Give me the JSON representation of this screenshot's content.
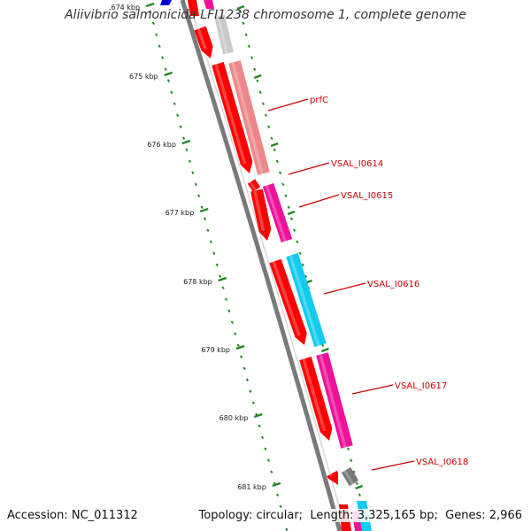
{
  "title": "Aliivibrio salmonicida LFI1238 chromosome 1, complete genome",
  "footer": {
    "accession_label": "Accession:",
    "accession": "NC_011312",
    "topology_label": "Topology:",
    "topology": "circular",
    "length_label": "Length:",
    "length": "3,325,165 bp",
    "genes_label": "Genes:",
    "genes": "2,966"
  },
  "colors": {
    "backbone": "#7a7a7a",
    "tick": "#228822",
    "label": "#cc0000",
    "forward": "#ff0000",
    "pink": "#ee1199",
    "cyan": "#11ccee",
    "gray": "#777777",
    "blue": "#0000dd"
  },
  "ticks": [
    {
      "kbp": 674,
      "label": "674 kbp"
    },
    {
      "kbp": 675,
      "label": "675 kbp"
    },
    {
      "kbp": 676,
      "label": "676 kbp"
    },
    {
      "kbp": 677,
      "label": "677 kbp"
    },
    {
      "kbp": 678,
      "label": "678 kbp"
    },
    {
      "kbp": 679,
      "label": "679 kbp"
    },
    {
      "kbp": 680,
      "label": "680 kbp"
    },
    {
      "kbp": 681,
      "label": "681 kbp"
    }
  ],
  "gene_labels": [
    "prfC",
    "VSAL_I0614",
    "VSAL_I0615",
    "VSAL_I0616",
    "VSAL_I0617",
    "VSAL_I0618"
  ]
}
